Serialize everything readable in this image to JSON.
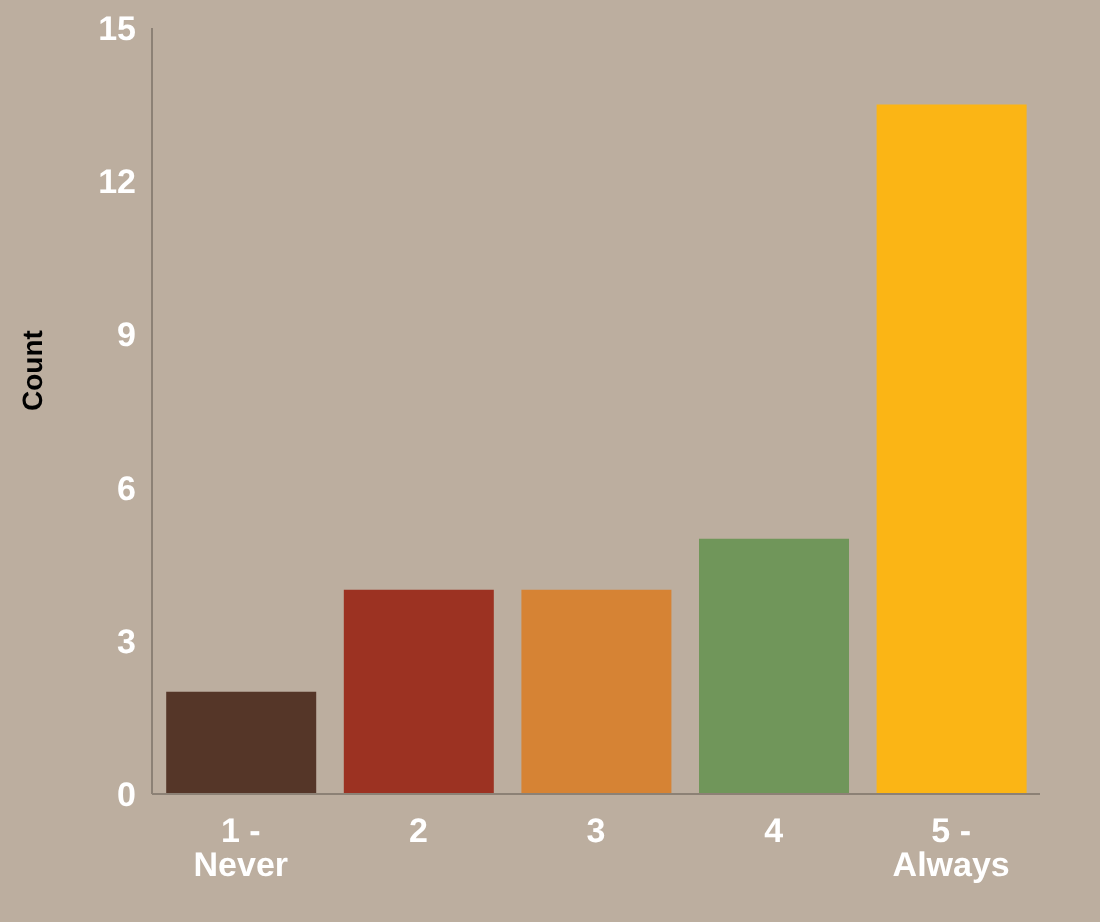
{
  "chart_data": {
    "type": "bar",
    "ylabel": "Count",
    "categories": [
      "1 - Never",
      "2",
      "3",
      "4",
      "5 - Always"
    ],
    "values": [
      2,
      4,
      4,
      5,
      13.5
    ],
    "colors": [
      "#553628",
      "#9c3222",
      "#d68334",
      "#70965a",
      "#fbb515"
    ],
    "ylim": [
      0,
      15
    ],
    "yticks": [
      0,
      3,
      6,
      9,
      12,
      15
    ],
    "grid": false,
    "legend": false
  }
}
